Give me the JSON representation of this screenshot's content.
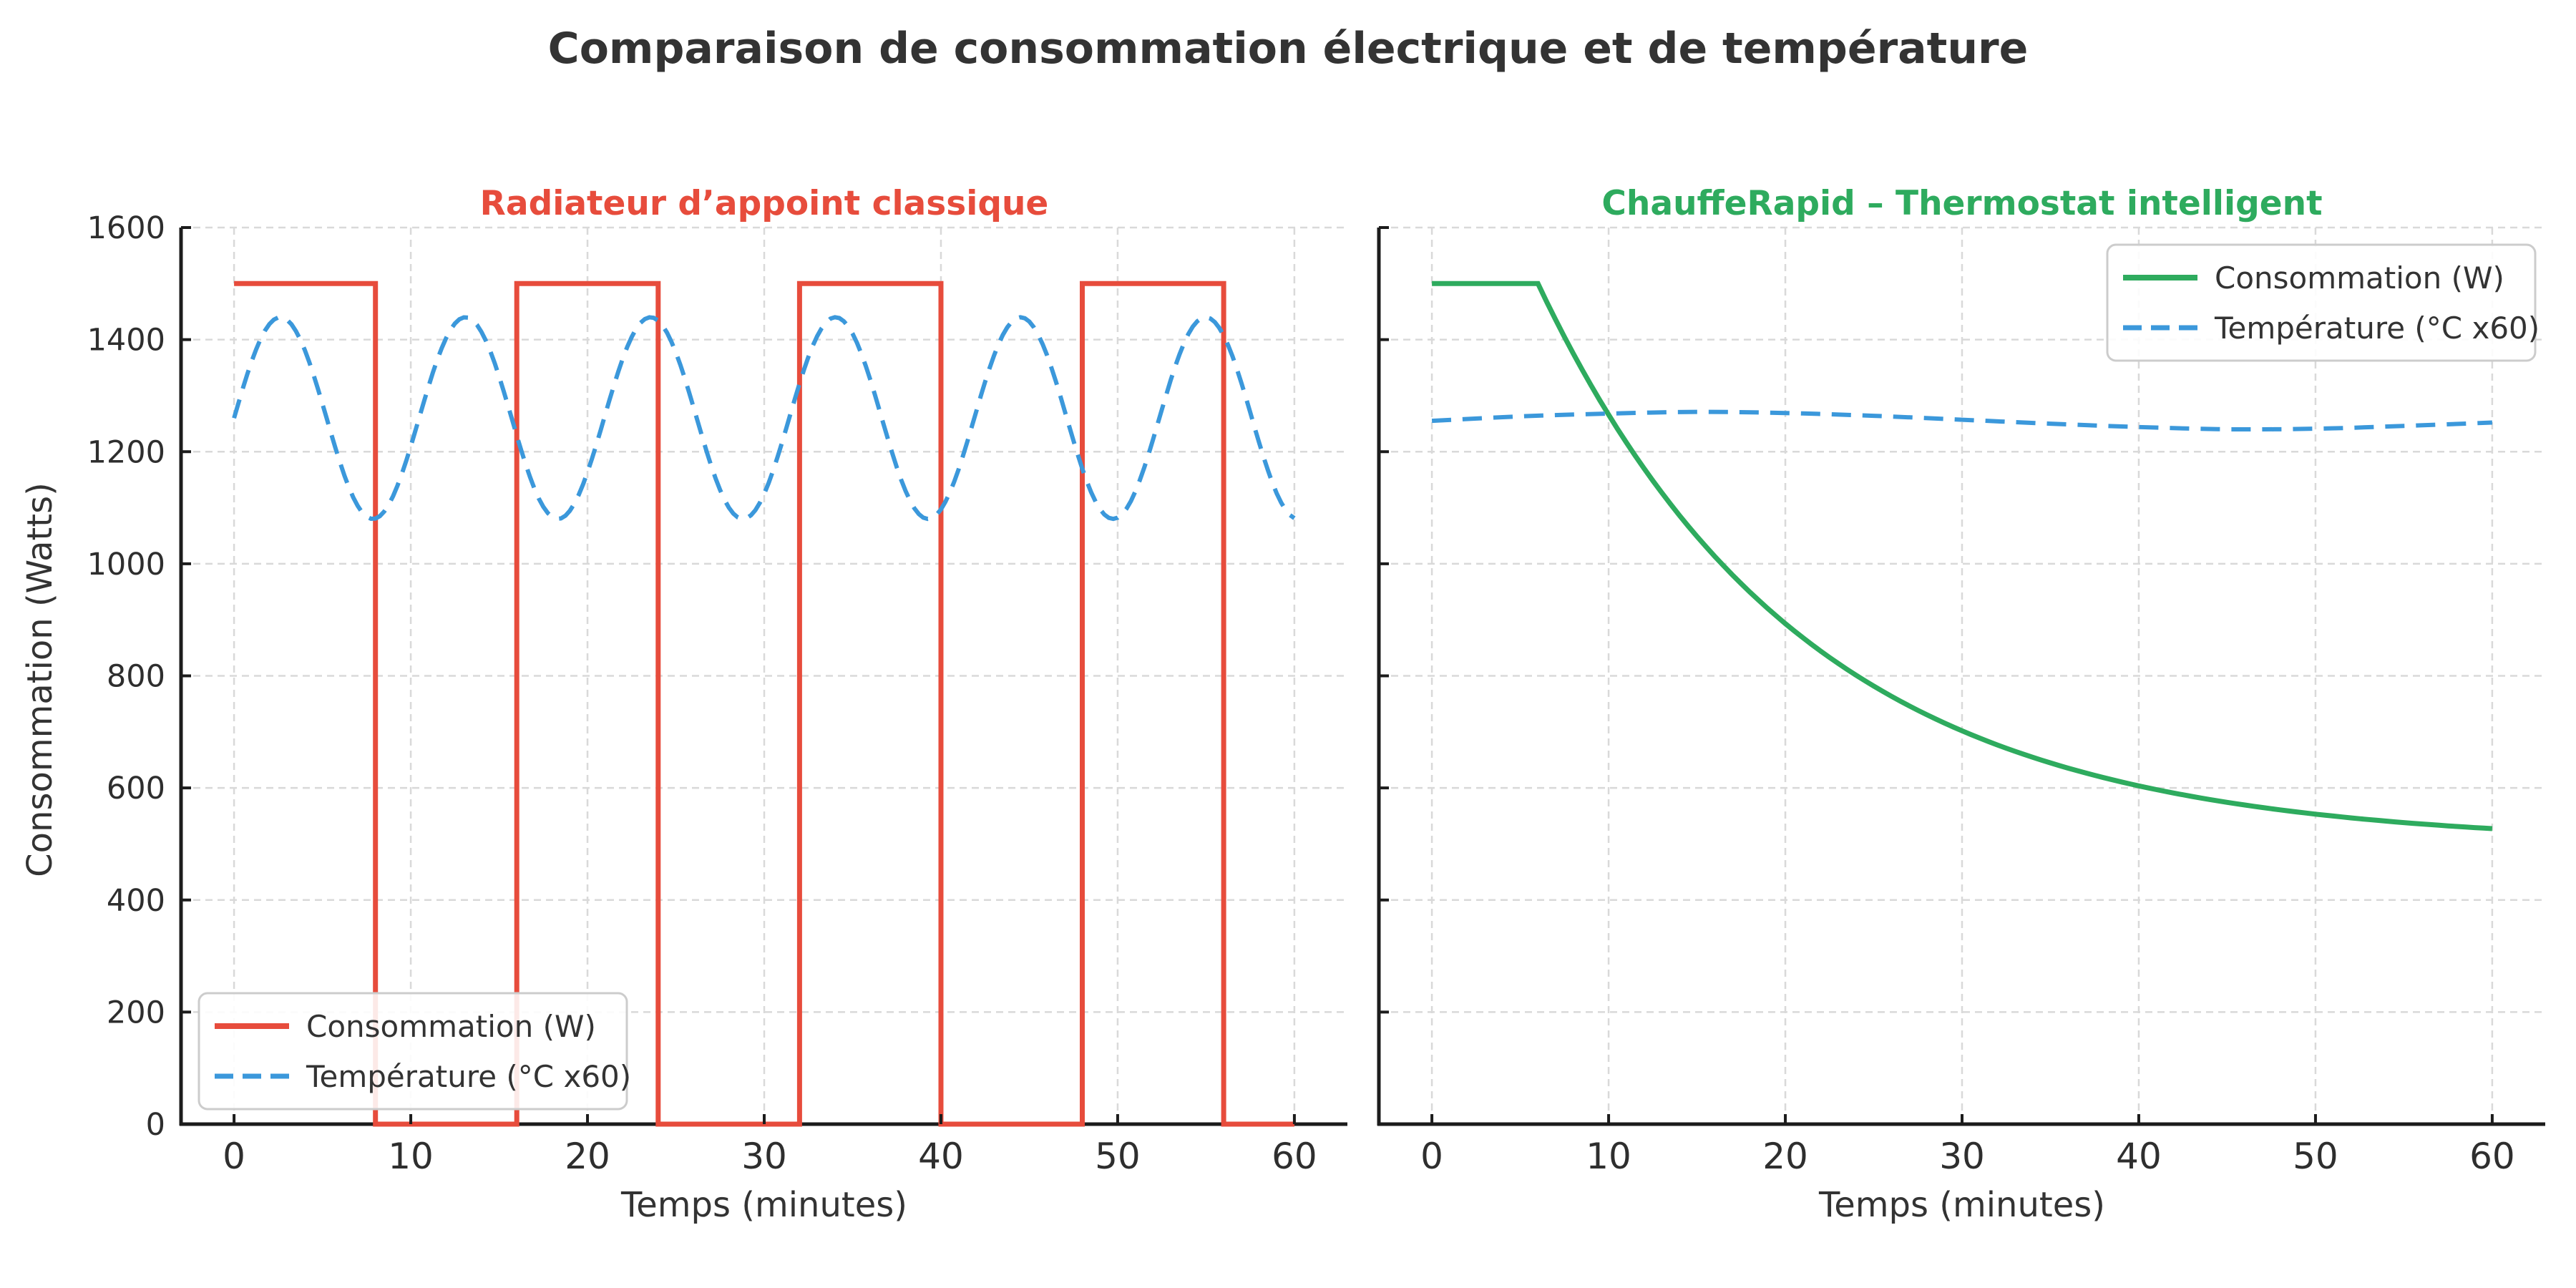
{
  "figure": {
    "title": "Comparaison de consommation électrique et de température",
    "title_color": "#333333",
    "background": "#ffffff",
    "grid_color": "#d9d9d9",
    "spine_color": "#1c1c1c",
    "tick_label_color": "#2e2e2e",
    "axis_label_color": "#333333",
    "legend_border_color": "#cccccc",
    "legend_text_color": "#333333"
  },
  "chart_data": [
    {
      "type": "line",
      "title": "Radiateur d’appoint classique",
      "title_color": "#e74c3c",
      "xlabel": "Temps (minutes)",
      "ylabel": "Consommation (Watts)",
      "xlim": [
        -3,
        63
      ],
      "ylim": [
        0,
        1600
      ],
      "xticks": [
        0,
        10,
        20,
        30,
        40,
        50,
        60
      ],
      "yticks": [
        0,
        200,
        400,
        600,
        800,
        1000,
        1200,
        1400,
        1600
      ],
      "ytick_labels": true,
      "grid": true,
      "legend_position": "lower-left",
      "series": [
        {
          "name": "Consommation (W)",
          "color": "#e74c3c",
          "line_style": "solid",
          "line_width": 7,
          "points": [
            [
              0,
              1500
            ],
            [
              8,
              1500
            ],
            [
              8,
              0
            ],
            [
              16,
              0
            ],
            [
              16,
              1500
            ],
            [
              24,
              1500
            ],
            [
              24,
              0
            ],
            [
              32,
              0
            ],
            [
              32,
              1500
            ],
            [
              40,
              1500
            ],
            [
              40,
              0
            ],
            [
              48,
              0
            ],
            [
              48,
              1500
            ],
            [
              56,
              1500
            ],
            [
              56,
              0
            ],
            [
              60,
              0
            ]
          ]
        },
        {
          "name": "Température (°C x60)",
          "color": "#3b98db",
          "line_style": "dashed",
          "line_width": 6,
          "model": {
            "type": "sine",
            "base": 1260,
            "amplitude": 180,
            "omega": 0.6,
            "t_start": 0,
            "t_end": 60,
            "step": 0.25
          },
          "peak_value": 1440,
          "trough_value": 1080
        }
      ]
    },
    {
      "type": "line",
      "title": "ChauffeRapid – Thermostat intelligent",
      "title_color": "#2eab5e",
      "xlabel": "Temps (minutes)",
      "ylabel": "",
      "xlim": [
        -3,
        63
      ],
      "ylim": [
        0,
        1600
      ],
      "xticks": [
        0,
        10,
        20,
        30,
        40,
        50,
        60
      ],
      "yticks": [
        0,
        200,
        400,
        600,
        800,
        1000,
        1200,
        1400,
        1600
      ],
      "ytick_labels": false,
      "grid": true,
      "legend_position": "upper-right",
      "series": [
        {
          "name": "Consommation (W)",
          "color": "#2eab5e",
          "line_style": "solid",
          "line_width": 7,
          "model": {
            "type": "exp_decay",
            "flat_value": 1500,
            "flat_until": 6,
            "asymptote": 500,
            "amplitude": 1000,
            "tau": 15,
            "t_start": 0,
            "t_end": 60,
            "step": 0.5
          },
          "end_value": 527
        },
        {
          "name": "Température (°C x60)",
          "color": "#3b98db",
          "line_style": "dashed",
          "line_width": 6,
          "smooth": true,
          "points": [
            [
              0,
              1255
            ],
            [
              5,
              1263
            ],
            [
              10,
              1268
            ],
            [
              15,
              1271
            ],
            [
              20,
              1269
            ],
            [
              25,
              1264
            ],
            [
              30,
              1257
            ],
            [
              35,
              1250
            ],
            [
              40,
              1244
            ],
            [
              45,
              1240
            ],
            [
              50,
              1241
            ],
            [
              55,
              1246
            ],
            [
              60,
              1252
            ]
          ]
        }
      ]
    }
  ]
}
